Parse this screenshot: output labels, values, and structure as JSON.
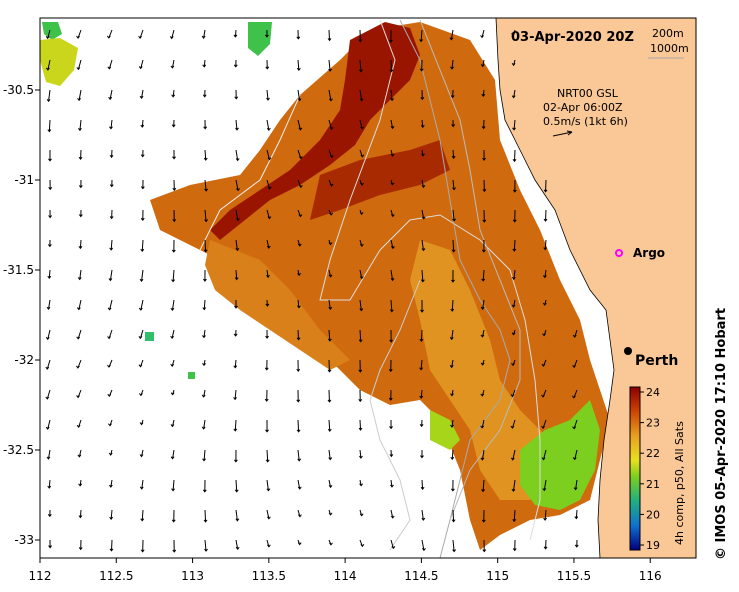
{
  "title": "03-Apr-2020 20Z",
  "contours": [
    "200m",
    "1000m"
  ],
  "current": {
    "model": "NRT00 GSL",
    "time": "02-Apr 06:00Z",
    "scale": "0.5m/s (1kt 6h)"
  },
  "places": {
    "argo": "Argo",
    "city": "Perth"
  },
  "colorbar": {
    "label": "4h comp, p50, All Sats",
    "ticks": [
      "24",
      "23",
      "22",
      "21",
      "20",
      "19"
    ],
    "range": [
      19,
      24
    ]
  },
  "credit": "© IMOS 05-Apr-2020 17:10 Hobart",
  "axes": {
    "x_ticks": [
      "112",
      "112.5",
      "113",
      "113.5",
      "114",
      "114.5",
      "115",
      "115.5",
      "116"
    ],
    "y_ticks": [
      "-30.5",
      "-31",
      "-31.5",
      "-32",
      "-32.5",
      "-33"
    ],
    "x_range": [
      112,
      116.3
    ],
    "y_range": [
      -33.1,
      -30.1
    ]
  },
  "colors": {
    "sst_warmest": "#990000",
    "sst_warm": "#cc5500",
    "sst_mid": "#e39a1c",
    "sst_cool": "#7ccf1f",
    "land": "#fac796",
    "argo_marker": "#ff00ff",
    "contour_line": "#aaaaaa"
  }
}
